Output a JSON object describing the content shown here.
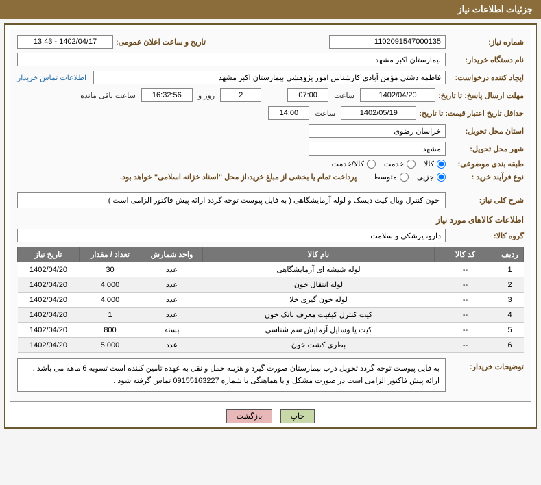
{
  "header": "جزئیات اطلاعات نیاز",
  "fields": {
    "need_no_label": "شماره نیاز:",
    "need_no": "1102091547000135",
    "ann_label": "تاریخ و ساعت اعلان عمومی:",
    "ann_value": "1402/04/17 - 13:43",
    "buyer_org_label": "نام دستگاه خریدار:",
    "buyer_org": "بیمارستان اکبر مشهد",
    "requester_label": "ایجاد کننده درخواست:",
    "requester": "فاطمه دشتی مؤمن آبادی کارشناس امور پژوهشی بیمارستان اکبر مشهد",
    "contact_link": "اطلاعات تماس خریدار",
    "deadline_label": "مهلت ارسال پاسخ: تا تاریخ:",
    "deadline_date": "1402/04/20",
    "time_label": "ساعت",
    "deadline_time": "07:00",
    "days_remaining": "2",
    "days_text": "روز و",
    "hours_remaining": "16:32:56",
    "remaining_text": "ساعت باقی مانده",
    "validity_label": "حداقل تاریخ اعتبار قیمت: تا تاریخ:",
    "validity_date": "1402/05/19",
    "validity_time": "14:00",
    "province_label": "استان محل تحویل:",
    "province": "خراسان رضوی",
    "city_label": "شهر محل تحویل:",
    "city": "مشهد",
    "category_label": "طبقه بندی موضوعی:",
    "cat_goods": "کالا",
    "cat_service": "خدمت",
    "cat_both": "کالا/خدمت",
    "process_label": "نوع فرآیند خرید :",
    "proc_partial": "جزیی",
    "proc_medium": "متوسط",
    "process_hint": "پرداخت تمام یا بخشی از مبلغ خرید،از محل \"اسناد خزانه اسلامی\" خواهد بود.",
    "need_desc_label": "شرح کلی نیاز:",
    "need_desc": "خون کنترل ویال کیت دیسک و لوله آزمایشگاهی ( به فایل پیوست توجه گردد ارائه پیش فاکتور الزامی است )",
    "goods_section": "اطلاعات کالاهای مورد نیاز",
    "group_label": "گروه کالا:",
    "group": "دارو، پزشکی و سلامت",
    "buyer_note_label": "توضیحات خریدار:",
    "buyer_note": "به فایل پیوست توجه گردد تحویل درب بیمارستان صورت گیرد و هزینه حمل و نقل به عهده تامین کننده است  تسویه 6 ماهه می باشد . ارائه پیش فاکتور الزامی است در صورت مشکل و یا هماهنگی با شماره 09155163227 تماس گرفته شود ."
  },
  "table": {
    "headers": {
      "row": "ردیف",
      "code": "کد کالا",
      "name": "نام کالا",
      "unit": "واحد شمارش",
      "qty": "تعداد / مقدار",
      "date": "تاریخ نیاز"
    },
    "rows": [
      {
        "n": "1",
        "code": "--",
        "name": "لوله شیشه ای آزمایشگاهی",
        "unit": "عدد",
        "qty": "30",
        "date": "1402/04/20"
      },
      {
        "n": "2",
        "code": "--",
        "name": "لوله انتقال خون",
        "unit": "عدد",
        "qty": "4,000",
        "date": "1402/04/20"
      },
      {
        "n": "3",
        "code": "--",
        "name": "لوله خون گیری خلا",
        "unit": "عدد",
        "qty": "4,000",
        "date": "1402/04/20"
      },
      {
        "n": "4",
        "code": "--",
        "name": "کیت کنترل کیفیت معرف بانک خون",
        "unit": "عدد",
        "qty": "1",
        "date": "1402/04/20"
      },
      {
        "n": "5",
        "code": "--",
        "name": "کیت یا وسایل آزمایش سم شناسی",
        "unit": "بسته",
        "qty": "800",
        "date": "1402/04/20"
      },
      {
        "n": "6",
        "code": "--",
        "name": "بطری کشت خون",
        "unit": "عدد",
        "qty": "5,000",
        "date": "1402/04/20"
      }
    ]
  },
  "buttons": {
    "print": "چاپ",
    "back": "بازگشت"
  },
  "styles": {
    "header_bg": "#8a6d3b",
    "label_color": "#6b4a1f",
    "th_bg": "#777777"
  }
}
